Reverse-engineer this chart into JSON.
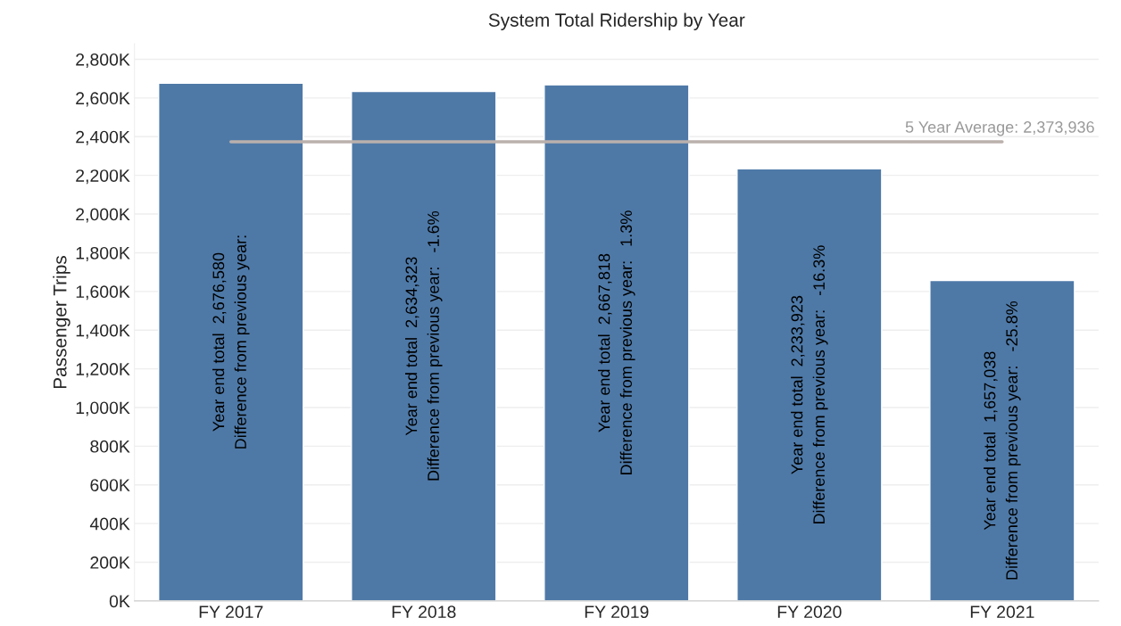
{
  "chart_data": {
    "type": "bar",
    "title": "System Total Ridership by Year",
    "ylabel": "Passenger Trips",
    "categories": [
      "FY 2017",
      "FY 2018",
      "FY 2019",
      "FY 2020",
      "FY 2021"
    ],
    "values": [
      2676580,
      2634323,
      2667818,
      2233923,
      1657038
    ],
    "color": "#4e79a7",
    "value_labels": [
      "Year end total  2,676,580\nDifference from previous year:",
      "Year end total  2,634,323\nDifference from previous year:   -1.6%",
      "Year end total  2,667,818\nDifference from previous year:   1.3%",
      "Year end total  2,233,923\nDifference from previous year:   -16.3%",
      "Year end total  1,657,038\nDifference from previous year:   -25.8%"
    ],
    "ylim": [
      0,
      2880000
    ],
    "yticks": [
      {
        "value": 0,
        "label": "0K"
      },
      {
        "value": 200000,
        "label": "200K"
      },
      {
        "value": 400000,
        "label": "400K"
      },
      {
        "value": 600000,
        "label": "600K"
      },
      {
        "value": 800000,
        "label": "800K"
      },
      {
        "value": 1000000,
        "label": "1,000K"
      },
      {
        "value": 1200000,
        "label": "1,200K"
      },
      {
        "value": 1400000,
        "label": "1,400K"
      },
      {
        "value": 1600000,
        "label": "1,600K"
      },
      {
        "value": 1800000,
        "label": "1,800K"
      },
      {
        "value": 2000000,
        "label": "2,000K"
      },
      {
        "value": 2200000,
        "label": "2,200K"
      },
      {
        "value": 2400000,
        "label": "2,400K"
      },
      {
        "value": 2600000,
        "label": "2,600K"
      },
      {
        "value": 2800000,
        "label": "2,800K"
      }
    ],
    "ref_lines": [
      {
        "axis": "y",
        "value": 2373936,
        "label": "5 Year Average: 2,373,936",
        "color": "#bab0ac"
      }
    ],
    "grid": "y",
    "legend": false
  }
}
